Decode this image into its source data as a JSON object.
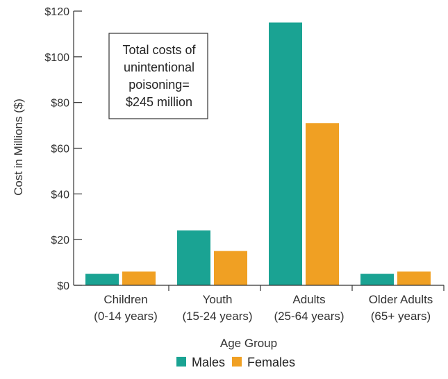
{
  "chart_data": {
    "type": "bar",
    "categories": [
      [
        "Children",
        "(0-14 years)"
      ],
      [
        "Youth",
        "(15-24 years)"
      ],
      [
        "Adults",
        "(25-64 years)"
      ],
      [
        "Older Adults",
        "(65+ years)"
      ]
    ],
    "series": [
      {
        "name": "Males",
        "color": "#1aa393",
        "values": [
          5,
          24,
          115,
          5
        ]
      },
      {
        "name": "Females",
        "color": "#f0a023",
        "values": [
          6,
          15,
          71,
          6
        ]
      }
    ],
    "xlabel": "Age Group",
    "ylabel": "Cost in Millions ($)",
    "ylim": [
      0,
      120
    ],
    "yticks": [
      0,
      20,
      40,
      60,
      80,
      100,
      120
    ],
    "ytick_labels": [
      "$0",
      "$20",
      "$40",
      "$60",
      "$80",
      "$100",
      "$120"
    ],
    "annotation": [
      "Total costs of",
      "unintentional",
      "poisoning=",
      "$245 million"
    ],
    "legend_position": "bottom",
    "grid": false
  }
}
